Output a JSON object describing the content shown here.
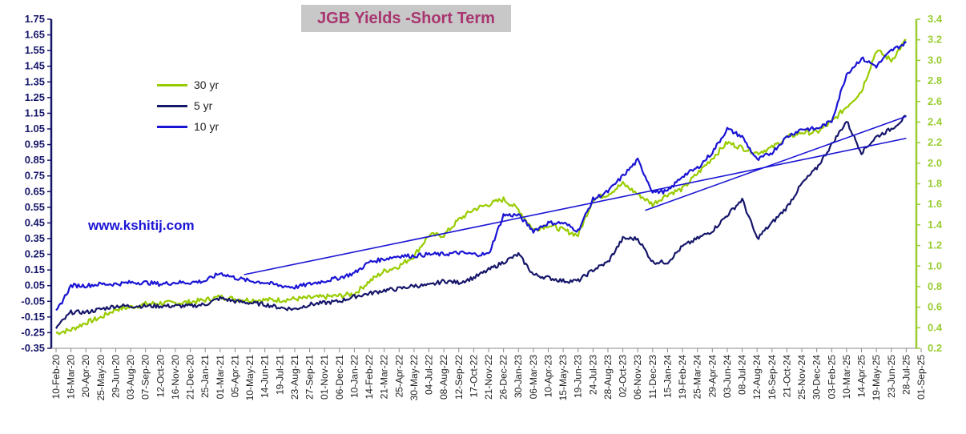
{
  "chart_data": {
    "type": "line",
    "title": "JGB Yields  -Short  Term",
    "watermark": "www.kshitij.com",
    "left_axis": {
      "min": -0.35,
      "max": 1.75,
      "step": 0.1,
      "ticks": [
        "-0.35",
        "-0.25",
        "-0.15",
        "-0.05",
        "0.05",
        "0.15",
        "0.25",
        "0.35",
        "0.45",
        "0.55",
        "0.65",
        "0.75",
        "0.85",
        "0.95",
        "1.05",
        "1.15",
        "1.25",
        "1.35",
        "1.45",
        "1.55",
        "1.65",
        "1.75"
      ],
      "color": "#16166a"
    },
    "right_axis": {
      "min": 0.2,
      "max": 3.4,
      "step": 0.2,
      "ticks": [
        "0.2",
        "0.4",
        "0.6",
        "0.8",
        "1.0",
        "1.2",
        "1.4",
        "1.6",
        "1.8",
        "2.0",
        "2.2",
        "2.4",
        "2.6",
        "2.8",
        "3.0",
        "3.2",
        "3.4"
      ],
      "color": "#9acd32"
    },
    "x_labels": [
      "10-Feb-20",
      "16-Mar-20",
      "20-Apr-20",
      "25-May-20",
      "29-Jun-20",
      "03-Aug-20",
      "07-Sep-20",
      "12-Oct-20",
      "16-Nov-20",
      "21-Dec-20",
      "25-Jan-21",
      "01-Mar-21",
      "05-Apr-21",
      "10-May-21",
      "14-Jun-21",
      "19-Jul-21",
      "23-Aug-21",
      "27-Sep-21",
      "01-Nov-21",
      "06-Dec-21",
      "10-Jan-22",
      "14-Feb-22",
      "21-Mar-22",
      "25-Apr-22",
      "30-May-22",
      "04-Jul-22",
      "08-Aug-22",
      "12-Sep-22",
      "17-Oct-22",
      "21-Nov-22",
      "26-Dec-22",
      "30-Jan-23",
      "06-Mar-23",
      "10-Apr-23",
      "15-May-23",
      "19-Jun-23",
      "24-Jul-23",
      "28-Aug-23",
      "02-Oct-23",
      "06-Nov-23",
      "11-Dec-23",
      "15-Jan-24",
      "19-Feb-24",
      "25-Mar-24",
      "29-Apr-24",
      "03-Jun-24",
      "08-Jul-24",
      "12-Aug-24",
      "16-Sep-24",
      "21-Oct-24",
      "25-Nov-24",
      "30-Dec-24",
      "03-Feb-25",
      "10-Mar-25",
      "14-Apr-25",
      "19-May-25",
      "23-Jun-25",
      "28-Jul-25",
      "01-Sep-25"
    ],
    "legend": [
      "30 yr",
      "5 yr",
      "10 yr"
    ],
    "series": [
      {
        "name": "30 yr",
        "axis": "right",
        "color": "#99cc00",
        "x": [
          0,
          1,
          2,
          3,
          4,
          5,
          6,
          7,
          8,
          9,
          10,
          11,
          12,
          13,
          14,
          15,
          16,
          17,
          18,
          19,
          20,
          21,
          22,
          23,
          24,
          25,
          26,
          27,
          28,
          29,
          30,
          31,
          32,
          33,
          34,
          35,
          36,
          37,
          38,
          39,
          40,
          41,
          42,
          43,
          44,
          45,
          46,
          47,
          48,
          49,
          50,
          51,
          52,
          53,
          54,
          55,
          56,
          57
        ],
        "values": [
          0.35,
          0.38,
          0.45,
          0.5,
          0.58,
          0.6,
          0.63,
          0.64,
          0.64,
          0.65,
          0.67,
          0.7,
          0.68,
          0.67,
          0.67,
          0.67,
          0.68,
          0.69,
          0.7,
          0.71,
          0.73,
          0.85,
          0.95,
          1.0,
          1.1,
          1.3,
          1.3,
          1.45,
          1.55,
          1.6,
          1.65,
          1.55,
          1.35,
          1.4,
          1.35,
          1.3,
          1.65,
          1.7,
          1.8,
          1.7,
          1.6,
          1.7,
          1.75,
          1.9,
          2.05,
          2.2,
          2.15,
          2.1,
          2.15,
          2.25,
          2.3,
          2.3,
          2.4,
          2.55,
          2.7,
          3.1,
          3.0,
          3.2
        ]
      },
      {
        "name": "5 yr",
        "axis": "left",
        "color": "#16166a",
        "x": [
          0,
          1,
          2,
          3,
          4,
          5,
          6,
          7,
          8,
          9,
          10,
          11,
          12,
          13,
          14,
          15,
          16,
          17,
          18,
          19,
          20,
          21,
          22,
          23,
          24,
          25,
          26,
          27,
          28,
          29,
          30,
          31,
          32,
          33,
          34,
          35,
          36,
          37,
          38,
          39,
          40,
          41,
          42,
          43,
          44,
          45,
          46,
          47,
          48,
          49,
          50,
          51,
          52,
          53,
          54,
          55,
          56,
          57
        ],
        "values": [
          -0.22,
          -0.12,
          -0.12,
          -0.1,
          -0.08,
          -0.08,
          -0.08,
          -0.08,
          -0.08,
          -0.08,
          -0.07,
          -0.03,
          -0.05,
          -0.06,
          -0.07,
          -0.09,
          -0.1,
          -0.07,
          -0.06,
          -0.05,
          -0.02,
          0.0,
          0.02,
          0.03,
          0.05,
          0.05,
          0.08,
          0.07,
          0.1,
          0.15,
          0.2,
          0.25,
          0.12,
          0.1,
          0.08,
          0.08,
          0.15,
          0.2,
          0.35,
          0.35,
          0.2,
          0.2,
          0.3,
          0.35,
          0.4,
          0.5,
          0.6,
          0.35,
          0.45,
          0.55,
          0.7,
          0.8,
          0.95,
          1.1,
          0.9,
          1.0,
          1.05,
          1.13
        ]
      },
      {
        "name": "10 yr",
        "axis": "left",
        "color": "#1a14d4",
        "x": [
          0,
          1,
          2,
          3,
          4,
          5,
          6,
          7,
          8,
          9,
          10,
          11,
          12,
          13,
          14,
          15,
          16,
          17,
          18,
          19,
          20,
          21,
          22,
          23,
          24,
          25,
          26,
          27,
          28,
          29,
          30,
          31,
          32,
          33,
          34,
          35,
          36,
          37,
          38,
          39,
          40,
          41,
          42,
          43,
          44,
          45,
          46,
          47,
          48,
          49,
          50,
          51,
          52,
          53,
          54,
          55,
          56,
          57
        ],
        "values": [
          -0.12,
          0.05,
          0.05,
          0.06,
          0.06,
          0.07,
          0.07,
          0.06,
          0.07,
          0.07,
          0.08,
          0.13,
          0.1,
          0.08,
          0.07,
          0.05,
          0.04,
          0.06,
          0.08,
          0.1,
          0.13,
          0.2,
          0.22,
          0.24,
          0.24,
          0.25,
          0.25,
          0.26,
          0.25,
          0.25,
          0.5,
          0.5,
          0.4,
          0.45,
          0.45,
          0.4,
          0.6,
          0.65,
          0.75,
          0.85,
          0.65,
          0.65,
          0.75,
          0.8,
          0.9,
          1.05,
          1.0,
          0.85,
          0.9,
          1.0,
          1.05,
          1.05,
          1.1,
          1.4,
          1.5,
          1.45,
          1.55,
          1.6
        ]
      }
    ],
    "trendlines": [
      {
        "axis": "left",
        "x": [
          12.6,
          57.0
        ],
        "values": [
          0.12,
          0.99
        ]
      },
      {
        "axis": "left",
        "x": [
          39.5,
          57.0
        ],
        "values": [
          0.53,
          1.13
        ]
      }
    ]
  }
}
